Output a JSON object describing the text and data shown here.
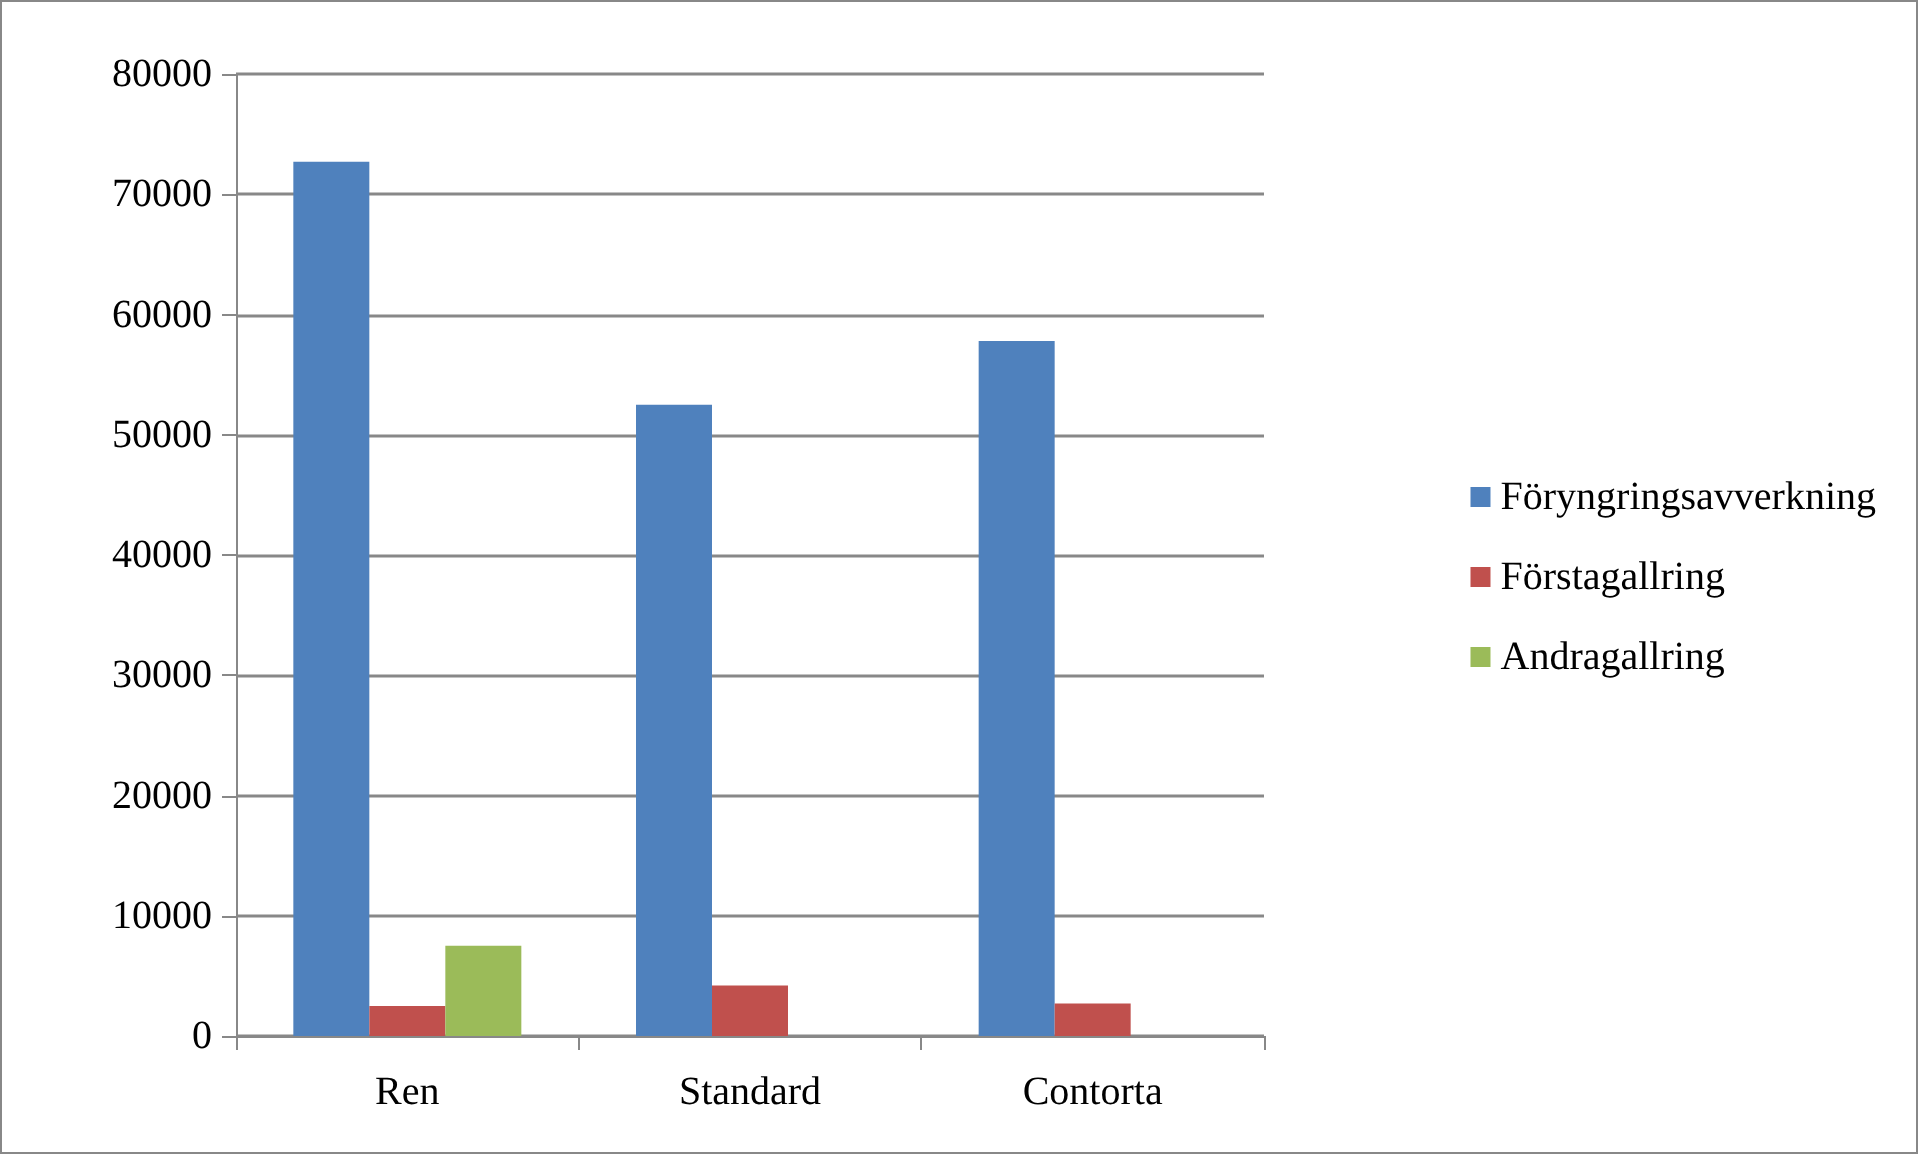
{
  "chart_data": {
    "type": "bar",
    "categories": [
      "Ren",
      "Standard",
      "Contorta"
    ],
    "series": [
      {
        "name": "Föryngringsavverkning",
        "color": "#4f81bd",
        "values": [
          72700,
          52500,
          57800
        ]
      },
      {
        "name": "Förstagallring",
        "color": "#c0504d",
        "values": [
          2500,
          4200,
          2700
        ]
      },
      {
        "name": "Andragallring",
        "color": "#9bbb59",
        "values": [
          7500,
          null,
          null
        ]
      }
    ],
    "ylim": [
      0,
      80000
    ],
    "yticks": [
      0,
      10000,
      20000,
      30000,
      40000,
      50000,
      60000,
      70000,
      80000
    ],
    "grid": "y",
    "legend": "right"
  }
}
